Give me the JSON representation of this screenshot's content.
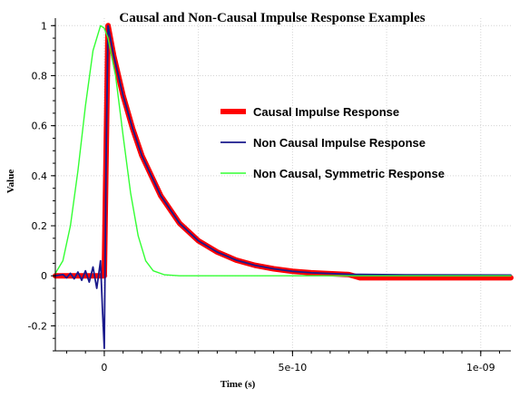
{
  "chart_data": {
    "type": "line",
    "title": "Causal and Non-Causal Impulse Response Examples",
    "xlabel": "Time (s)",
    "ylabel": "Value",
    "xlim": [
      -1.3e-10,
      1.08e-09
    ],
    "ylim": [
      -0.3,
      1.03
    ],
    "x_ticks": [
      {
        "value": 0,
        "label": "0"
      },
      {
        "value": 5e-10,
        "label": "5e-10"
      },
      {
        "value": 1e-09,
        "label": "1e-09"
      }
    ],
    "y_ticks": [
      {
        "value": -0.2,
        "label": "-0.2"
      },
      {
        "value": 0,
        "label": "0"
      },
      {
        "value": 0.2,
        "label": "0.2"
      },
      {
        "value": 0.4,
        "label": "0.4"
      },
      {
        "value": 0.6,
        "label": "0.6"
      },
      {
        "value": 0.8,
        "label": "0.8"
      },
      {
        "value": 1,
        "label": "1"
      }
    ],
    "grid": true,
    "legend_position": "center-right",
    "series": [
      {
        "name": "Causal Impulse Response",
        "color": "#ff0000",
        "x": [
          -1.3e-10,
          0,
          1e-11,
          1.5e-11,
          2.5e-11,
          5e-11,
          7.5e-11,
          1e-10,
          1.5e-10,
          2e-10,
          2.5e-10,
          3e-10,
          3.5e-10,
          4e-10,
          4.5e-10,
          5e-10,
          5.5e-10,
          6.5e-10,
          6.8e-10,
          8e-10,
          9e-10,
          1.08e-09
        ],
        "y": [
          0,
          0,
          1,
          0.96,
          0.88,
          0.72,
          0.59,
          0.48,
          0.32,
          0.21,
          0.14,
          0.095,
          0.063,
          0.042,
          0.028,
          0.018,
          0.012,
          0.005,
          -0.008,
          -0.008,
          -0.008,
          -0.008
        ]
      },
      {
        "name": "Non Causal Impulse Response",
        "color": "#1a1a8c",
        "x": [
          -1.3e-10,
          -1.1e-10,
          -1e-10,
          -9e-11,
          -8e-11,
          -7e-11,
          -6e-11,
          -5e-11,
          -4e-11,
          -3e-11,
          -2e-11,
          -1e-11,
          -5e-12,
          0,
          5e-12,
          1e-11,
          1.5e-11,
          2.5e-11,
          5e-11,
          7.5e-11,
          1e-10,
          1.5e-10,
          2e-10,
          2.5e-10,
          3e-10,
          3.5e-10,
          4e-10,
          4.5e-10,
          5e-10,
          5.5e-10,
          6.5e-10,
          8e-10,
          1.08e-09
        ],
        "y": [
          0,
          0.005,
          -0.008,
          0.01,
          -0.012,
          0.015,
          -0.018,
          0.02,
          -0.025,
          0.035,
          -0.05,
          0.06,
          -0.13,
          -0.29,
          0.5,
          1,
          0.96,
          0.88,
          0.72,
          0.59,
          0.48,
          0.32,
          0.21,
          0.14,
          0.095,
          0.063,
          0.042,
          0.028,
          0.018,
          0.012,
          0.006,
          0.004,
          0.003
        ]
      },
      {
        "name": "Non Causal, Symmetric Response",
        "color": "#33ff33",
        "x": [
          -1.3e-10,
          -1.1e-10,
          -9e-11,
          -7e-11,
          -5e-11,
          -3e-11,
          -1e-11,
          0,
          1e-11,
          3e-11,
          5e-11,
          7e-11,
          9e-11,
          1.1e-10,
          1.3e-10,
          1.6e-10,
          2e-10,
          1.08e-09
        ],
        "y": [
          0.01,
          0.06,
          0.2,
          0.42,
          0.68,
          0.9,
          1,
          0.99,
          0.95,
          0.8,
          0.56,
          0.33,
          0.16,
          0.06,
          0.02,
          0.004,
          0,
          0
        ]
      }
    ]
  }
}
